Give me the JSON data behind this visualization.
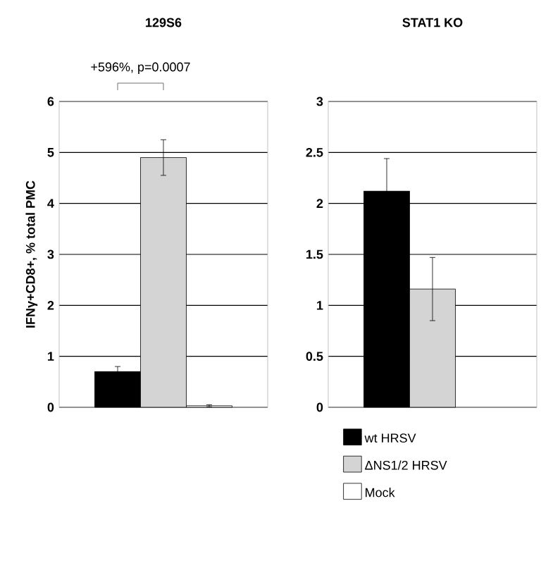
{
  "chart_data": [
    {
      "type": "bar",
      "title": "129S6",
      "ylabel": "IFNγ+CD8+, % total PMC",
      "annotations": [
        "+596%, p=0.0007"
      ],
      "categories": [
        null
      ],
      "series": [
        {
          "color": "#000000",
          "values": [
            0.7
          ],
          "errors": [
            0.1
          ]
        },
        {
          "color": "#d4d4d4",
          "values": [
            4.9
          ],
          "errors": [
            0.35
          ]
        },
        {
          "color": "#ffffff",
          "values": [
            0.03
          ],
          "errors": [
            0.02
          ]
        }
      ],
      "ylim": [
        0,
        6
      ],
      "yticks": [
        0,
        1,
        2,
        3,
        4,
        5,
        6
      ],
      "grid": "y"
    },
    {
      "type": "bar",
      "title": "STAT1 KO",
      "categories": [
        null
      ],
      "series": [
        {
          "name": "wt HRSV",
          "color": "#000000",
          "values": [
            2.12
          ],
          "errors": [
            0.32
          ]
        },
        {
          "name": "ΔNS1/2 HRSV",
          "color": "#d4d4d4",
          "values": [
            1.16
          ],
          "errors": [
            0.31
          ]
        },
        {
          "name": "Mock",
          "color": "#ffffff",
          "values": [
            null
          ],
          "errors": [
            null
          ]
        }
      ],
      "ylim": [
        0,
        3
      ],
      "yticks": [
        0,
        0.5,
        1,
        1.5,
        2,
        2.5,
        3
      ],
      "grid": "y",
      "legend": "bottom"
    }
  ]
}
